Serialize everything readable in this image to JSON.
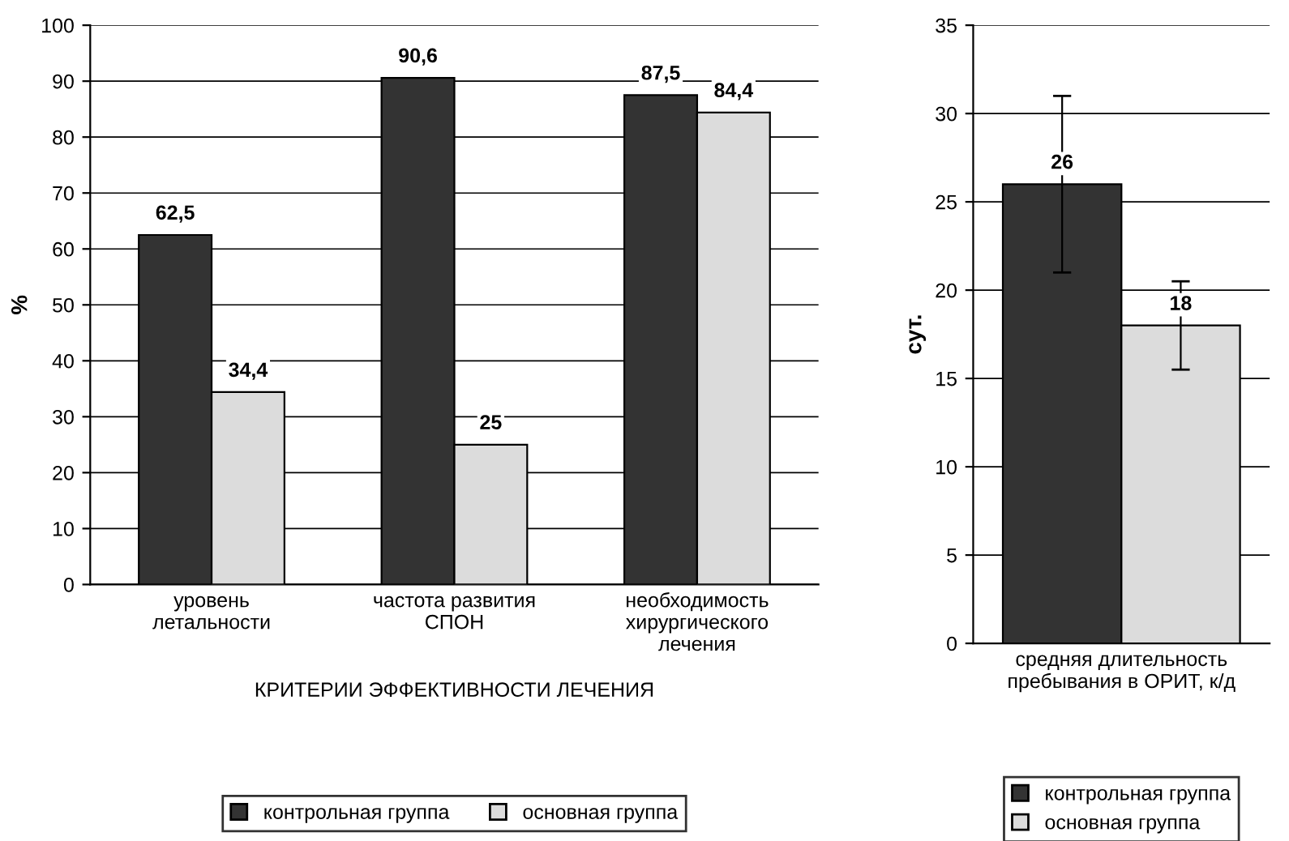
{
  "chart_data": [
    {
      "type": "bar",
      "ylabel": "%",
      "xlabel": "КРИТЕРИИ ЭФФЕКТИВНОСТИ ЛЕЧЕНИЯ",
      "categories": [
        "уровень\nлетальности",
        "частота развития\nСПОН",
        "необходимость\nхирургического\nлечения"
      ],
      "series": [
        {
          "name": "контрольная группа",
          "color": "#333333",
          "values": [
            62.5,
            90.6,
            87.5
          ],
          "value_labels": [
            "62,5",
            "90,6",
            "87,5"
          ]
        },
        {
          "name": "основная группа",
          "color": "#dcdcdc",
          "values": [
            34.4,
            25,
            84.4
          ],
          "value_labels": [
            "34,4",
            "25",
            "84,4"
          ]
        }
      ],
      "ylim": [
        0,
        100
      ],
      "yticks": [
        0,
        10,
        20,
        30,
        40,
        50,
        60,
        70,
        80,
        90,
        100
      ],
      "grid": "y",
      "legend": "bottom"
    },
    {
      "type": "bar",
      "ylabel": "сут.",
      "categories": [
        "средняя длительность\nпребывания в ОРИТ, к/д"
      ],
      "series": [
        {
          "name": "контрольная группа",
          "color": "#333333",
          "values": [
            26
          ],
          "errors": [
            5
          ],
          "value_labels": [
            "26"
          ]
        },
        {
          "name": "основная группа",
          "color": "#dcdcdc",
          "values": [
            18
          ],
          "errors": [
            2.5
          ],
          "value_labels": [
            "18"
          ]
        }
      ],
      "ylim": [
        0,
        35
      ],
      "yticks": [
        0,
        5,
        10,
        15,
        20,
        25,
        30,
        35
      ],
      "grid": "y",
      "legend": "bottom"
    }
  ]
}
